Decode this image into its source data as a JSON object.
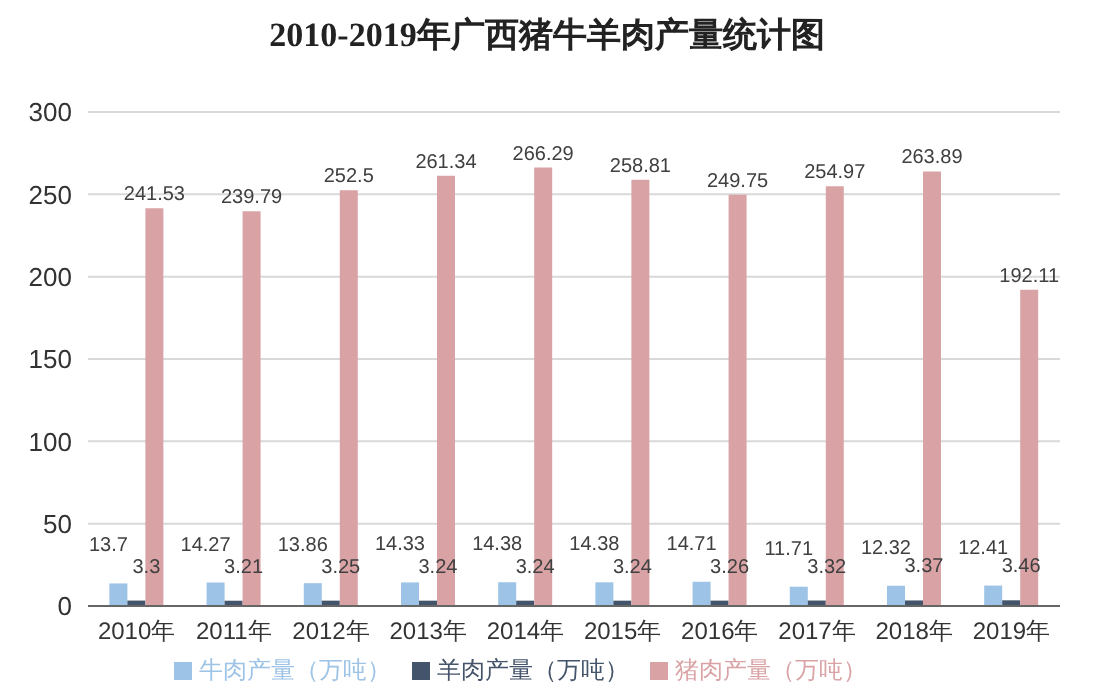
{
  "chart_data": {
    "type": "bar",
    "title": "2010-2019年广西猪牛羊肉产量统计图",
    "categories": [
      "2010年",
      "2011年",
      "2012年",
      "2013年",
      "2014年",
      "2015年",
      "2016年",
      "2017年",
      "2018年",
      "2019年"
    ],
    "series": [
      {
        "name": "牛肉产量（万吨）",
        "color": "#9dc3e6",
        "values": [
          13.7,
          14.27,
          13.86,
          14.33,
          14.38,
          14.38,
          14.71,
          11.71,
          12.32,
          12.41
        ]
      },
      {
        "name": "羊肉产量（万吨）",
        "color": "#44546a",
        "values": [
          3.3,
          3.21,
          3.25,
          3.24,
          3.24,
          3.24,
          3.26,
          3.32,
          3.37,
          3.46
        ]
      },
      {
        "name": "猪肉产量（万吨）",
        "color": "#d9a3a6",
        "values": [
          241.53,
          239.79,
          252.5,
          261.34,
          266.29,
          258.81,
          249.75,
          254.97,
          263.89,
          192.11
        ]
      }
    ],
    "ylim": [
      0,
      300
    ],
    "yticks": [
      0,
      50,
      100,
      150,
      200,
      250,
      300
    ],
    "grid": "y",
    "legend": "bottom",
    "data_labels": true
  }
}
